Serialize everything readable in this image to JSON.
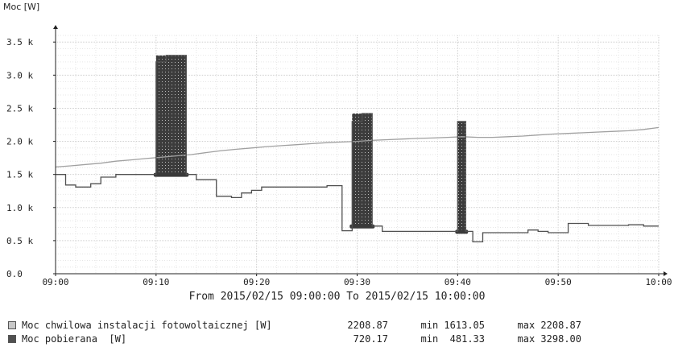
{
  "chart_data": {
    "type": "line",
    "ylabel": "Moc [W]",
    "subtitle": "From 2015/02/15 09:00:00 To 2015/02/15 10:00:00",
    "ylim": [
      0,
      3600
    ],
    "xlim": [
      0,
      60
    ],
    "y_ticks": [
      {
        "value": 0,
        "label": "0.0"
      },
      {
        "value": 500,
        "label": "0.5 k"
      },
      {
        "value": 1000,
        "label": "1.0 k"
      },
      {
        "value": 1500,
        "label": "1.5 k"
      },
      {
        "value": 2000,
        "label": "2.0 k"
      },
      {
        "value": 2500,
        "label": "2.5 k"
      },
      {
        "value": 3000,
        "label": "3.0 k"
      },
      {
        "value": 3500,
        "label": "3.5 k"
      }
    ],
    "x_ticks": [
      {
        "value": 0,
        "label": "09:00"
      },
      {
        "value": 10,
        "label": "09:10"
      },
      {
        "value": 20,
        "label": "09:20"
      },
      {
        "value": 30,
        "label": "09:30"
      },
      {
        "value": 40,
        "label": "09:40"
      },
      {
        "value": 50,
        "label": "09:50"
      },
      {
        "value": 60,
        "label": "10:00"
      }
    ],
    "grid": true,
    "legend_position": "bottom",
    "series": [
      {
        "name": "Moc chwilowa instalacji fotowoltaicznej [W]",
        "color": "#a0a0a0",
        "current": "2208.87",
        "min": "min 1613.05",
        "max": "max 2208.87",
        "points": [
          [
            0,
            1613
          ],
          [
            1.5,
            1630
          ],
          [
            3,
            1650
          ],
          [
            4.5,
            1670
          ],
          [
            6,
            1700
          ],
          [
            7.5,
            1720
          ],
          [
            9,
            1740
          ],
          [
            10.5,
            1760
          ],
          [
            12,
            1780
          ],
          [
            13.5,
            1800
          ],
          [
            15,
            1830
          ],
          [
            16.5,
            1860
          ],
          [
            18,
            1880
          ],
          [
            19.5,
            1900
          ],
          [
            21,
            1920
          ],
          [
            22.5,
            1935
          ],
          [
            24,
            1950
          ],
          [
            25.5,
            1965
          ],
          [
            27,
            1980
          ],
          [
            28.5,
            1990
          ],
          [
            30,
            2000
          ],
          [
            31.5,
            2015
          ],
          [
            33,
            2025
          ],
          [
            34.5,
            2035
          ],
          [
            36,
            2045
          ],
          [
            37.5,
            2050
          ],
          [
            39,
            2060
          ],
          [
            40.5,
            2070
          ],
          [
            42,
            2060
          ],
          [
            43.5,
            2060
          ],
          [
            45,
            2070
          ],
          [
            46.5,
            2080
          ],
          [
            48,
            2095
          ],
          [
            49.5,
            2110
          ],
          [
            51,
            2120
          ],
          [
            52.5,
            2130
          ],
          [
            54,
            2140
          ],
          [
            55.5,
            2150
          ],
          [
            57,
            2160
          ],
          [
            58.5,
            2180
          ],
          [
            60,
            2208.87
          ]
        ]
      },
      {
        "name": "Moc pobierana  [W]",
        "color": "#505050",
        "current": "720.17",
        "min": "min  481.33",
        "max": "max 3298.00",
        "points": [
          [
            0,
            1500
          ],
          [
            1,
            1500
          ],
          [
            1,
            1340
          ],
          [
            2,
            1340
          ],
          [
            2,
            1310
          ],
          [
            3.5,
            1310
          ],
          [
            3.5,
            1360
          ],
          [
            4.5,
            1360
          ],
          [
            4.5,
            1460
          ],
          [
            6,
            1460
          ],
          [
            6,
            1500
          ],
          [
            10,
            1500
          ],
          [
            10,
            3200
          ],
          [
            11,
            3200
          ],
          [
            11,
            3298
          ],
          [
            13,
            3298
          ],
          [
            13,
            1500
          ],
          [
            14,
            1500
          ],
          [
            14,
            1420
          ],
          [
            16,
            1420
          ],
          [
            16,
            1170
          ],
          [
            17.5,
            1170
          ],
          [
            17.5,
            1150
          ],
          [
            18.5,
            1150
          ],
          [
            18.5,
            1220
          ],
          [
            19.5,
            1220
          ],
          [
            19.5,
            1260
          ],
          [
            20.5,
            1260
          ],
          [
            20.5,
            1310
          ],
          [
            27,
            1310
          ],
          [
            27,
            1330
          ],
          [
            28.5,
            1330
          ],
          [
            28.5,
            650
          ],
          [
            29.5,
            650
          ],
          [
            29.5,
            2300
          ],
          [
            30.5,
            2300
          ],
          [
            30.5,
            2420
          ],
          [
            31.5,
            2420
          ],
          [
            31.5,
            720
          ],
          [
            32.5,
            720
          ],
          [
            32.5,
            640
          ],
          [
            40,
            640
          ],
          [
            40,
            2300
          ],
          [
            40.8,
            2300
          ],
          [
            40.8,
            640
          ],
          [
            41.5,
            640
          ],
          [
            41.5,
            481.33
          ],
          [
            42.5,
            481.33
          ],
          [
            42.5,
            620
          ],
          [
            47,
            620
          ],
          [
            47,
            660
          ],
          [
            48,
            660
          ],
          [
            48,
            640
          ],
          [
            49,
            640
          ],
          [
            49,
            620
          ],
          [
            51,
            620
          ],
          [
            51,
            760
          ],
          [
            53,
            760
          ],
          [
            53,
            730
          ],
          [
            57,
            730
          ],
          [
            57,
            740
          ],
          [
            58.5,
            740
          ],
          [
            58.5,
            720.17
          ],
          [
            60,
            720.17
          ]
        ]
      }
    ],
    "spikes": [
      {
        "x_start": 10,
        "x_end": 13,
        "y_base": 1500,
        "top": 3298
      },
      {
        "x_start": 29.5,
        "x_end": 31.5,
        "y_base": 720,
        "top": 2420
      },
      {
        "x_start": 40,
        "x_end": 40.8,
        "y_base": 640,
        "top": 2300
      }
    ]
  }
}
